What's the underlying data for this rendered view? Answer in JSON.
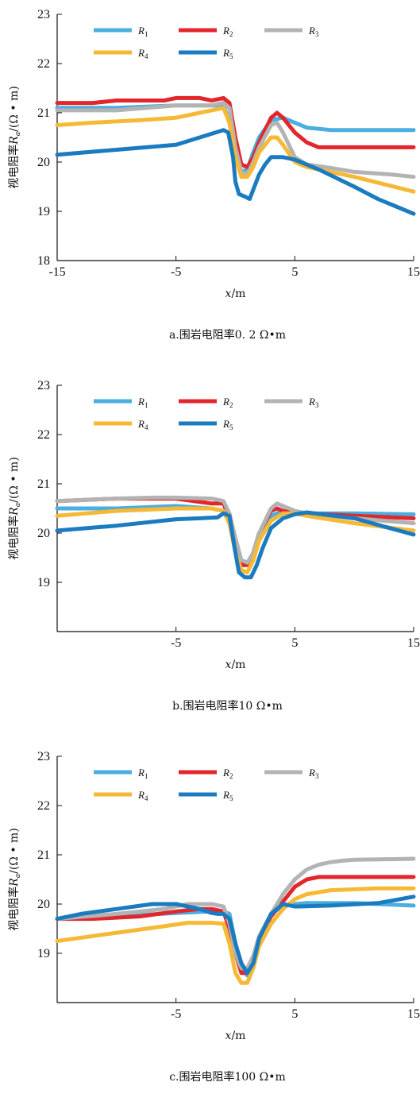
{
  "colors": {
    "R1": "#4aaee0",
    "R2": "#e2262c",
    "R3": "#b3b3b3",
    "R4": "#f6b935",
    "R5": "#1b7bc0"
  },
  "chart_data": [
    {
      "type": "line",
      "caption": "a.围岩电阻率0. 2 Ω•m",
      "ylabel": "视电阻率Ra/(Ω • m)",
      "xlabel": "x/m",
      "xlim": [
        -15,
        15
      ],
      "ylim": [
        18,
        23
      ],
      "xticks": [
        "-15",
        "-5",
        "5",
        "15"
      ],
      "yticks": [
        "18",
        "19",
        "20",
        "21",
        "22",
        "23"
      ],
      "legend": [
        "R1",
        "R2",
        "R3",
        "R4",
        "R5"
      ],
      "series": [
        {
          "name": "R1",
          "x": [
            -15,
            -10,
            -5,
            -2,
            -1,
            -0.5,
            0,
            0.5,
            1,
            1.5,
            2,
            3,
            4,
            5,
            6,
            8,
            10,
            15
          ],
          "y": [
            21.1,
            21.1,
            21.15,
            21.15,
            21.15,
            20.8,
            20.15,
            19.8,
            19.85,
            20.2,
            20.5,
            20.85,
            20.9,
            20.8,
            20.7,
            20.65,
            20.65,
            20.65
          ]
        },
        {
          "name": "R2",
          "x": [
            -15,
            -12,
            -10,
            -8,
            -6,
            -5,
            -3,
            -2,
            -1,
            -0.5,
            0,
            0.5,
            1,
            1.5,
            2,
            3,
            3.5,
            4,
            5,
            6,
            7,
            8,
            10,
            15
          ],
          "y": [
            21.2,
            21.2,
            21.25,
            21.25,
            21.25,
            21.3,
            21.3,
            21.25,
            21.3,
            21.2,
            20.5,
            19.95,
            19.9,
            20.1,
            20.4,
            20.9,
            21.0,
            20.9,
            20.6,
            20.4,
            20.3,
            20.3,
            20.3,
            20.3
          ]
        },
        {
          "name": "R3",
          "x": [
            -15,
            -10,
            -5,
            -2,
            -1,
            -0.5,
            0,
            0.5,
            1,
            1.5,
            2,
            3,
            3.5,
            4,
            5,
            6,
            8,
            10,
            13,
            15
          ],
          "y": [
            21.05,
            21.05,
            21.15,
            21.15,
            21.2,
            21.1,
            20.3,
            19.8,
            19.75,
            20.0,
            20.3,
            20.75,
            20.8,
            20.6,
            20.1,
            19.95,
            19.88,
            19.8,
            19.75,
            19.7
          ]
        },
        {
          "name": "R4",
          "x": [
            -15,
            -12,
            -8,
            -5,
            -3,
            -2,
            -1,
            -0.5,
            0,
            0.5,
            1,
            1.5,
            2,
            3,
            3.5,
            4,
            5,
            6,
            8,
            10,
            15
          ],
          "y": [
            20.75,
            20.8,
            20.85,
            20.9,
            21.0,
            21.05,
            21.1,
            20.8,
            20.1,
            19.7,
            19.7,
            19.9,
            20.2,
            20.5,
            20.5,
            20.35,
            20.0,
            19.9,
            19.8,
            19.7,
            19.4
          ]
        },
        {
          "name": "R5",
          "x": [
            -15,
            -10,
            -5,
            -3,
            -1,
            -0.6,
            -0.2,
            0,
            0.3,
            0.8,
            1.2,
            1.6,
            2,
            2.5,
            3,
            3.5,
            4,
            5,
            7,
            10,
            12,
            15
          ],
          "y": [
            20.15,
            20.25,
            20.35,
            20.5,
            20.65,
            20.6,
            20.1,
            19.6,
            19.35,
            19.3,
            19.25,
            19.5,
            19.75,
            19.95,
            20.1,
            20.1,
            20.1,
            20.05,
            19.85,
            19.5,
            19.25,
            18.95
          ]
        }
      ]
    },
    {
      "type": "line",
      "caption": "b.围岩电阻率10 Ω•m",
      "ylabel": "视电阻率Ra/(Ω • m)",
      "xlabel": "x/m",
      "xlim": [
        -15,
        15
      ],
      "ylim": [
        18,
        23
      ],
      "xticks": [
        "-5",
        "5",
        "15"
      ],
      "yticks": [
        "19",
        "20",
        "21",
        "22",
        "23"
      ],
      "legend": [
        "R1",
        "R2",
        "R3",
        "R4",
        "R5"
      ],
      "series": [
        {
          "name": "R1",
          "x": [
            -15,
            -10,
            -5,
            -2,
            -1,
            -0.5,
            0,
            0.5,
            1,
            1.5,
            2,
            3,
            4,
            5,
            6,
            10,
            15
          ],
          "y": [
            20.5,
            20.5,
            20.55,
            20.5,
            20.45,
            20.2,
            19.7,
            19.35,
            19.35,
            19.6,
            20.0,
            20.35,
            20.45,
            20.42,
            20.4,
            20.4,
            20.38
          ]
        },
        {
          "name": "R2",
          "x": [
            -15,
            -10,
            -5,
            -2,
            -1,
            -0.5,
            0,
            0.5,
            1,
            1.5,
            2,
            3,
            3.5,
            4,
            5,
            6,
            10,
            15
          ],
          "y": [
            20.65,
            20.7,
            20.7,
            20.6,
            20.6,
            20.3,
            19.75,
            19.35,
            19.35,
            19.6,
            20.0,
            20.45,
            20.5,
            20.45,
            20.4,
            20.4,
            20.35,
            20.3
          ]
        },
        {
          "name": "R3",
          "x": [
            -15,
            -10,
            -7,
            -5,
            -2,
            -1,
            -0.5,
            0,
            0.5,
            1,
            1.5,
            2,
            3,
            3.5,
            4,
            5,
            6,
            10,
            15
          ],
          "y": [
            20.65,
            20.7,
            20.72,
            20.72,
            20.7,
            20.65,
            20.4,
            19.9,
            19.45,
            19.4,
            19.6,
            20.0,
            20.5,
            20.6,
            20.55,
            20.45,
            20.4,
            20.3,
            20.2
          ]
        },
        {
          "name": "R4",
          "x": [
            -15,
            -10,
            -5,
            -2,
            -1,
            -0.5,
            0,
            0.5,
            1,
            1.5,
            2,
            3,
            4,
            5,
            6,
            10,
            15
          ],
          "y": [
            20.35,
            20.45,
            20.5,
            20.5,
            20.45,
            20.2,
            19.6,
            19.25,
            19.2,
            19.45,
            19.85,
            20.25,
            20.4,
            20.4,
            20.35,
            20.2,
            20.05
          ]
        },
        {
          "name": "R5",
          "x": [
            -15,
            -10,
            -5,
            -3,
            -1.5,
            -1,
            -0.5,
            0,
            0.3,
            0.8,
            1.3,
            1.8,
            2.3,
            3,
            4,
            5,
            6,
            10,
            13,
            15
          ],
          "y": [
            20.05,
            20.15,
            20.28,
            20.3,
            20.32,
            20.4,
            20.35,
            19.6,
            19.2,
            19.1,
            19.1,
            19.35,
            19.7,
            20.1,
            20.3,
            20.38,
            20.42,
            20.3,
            20.1,
            19.97
          ]
        }
      ]
    },
    {
      "type": "line",
      "caption": "c.围岩电阻率100 Ω•m",
      "ylabel": "视电阻率Ra/(Ω • m)",
      "xlabel": "x/m",
      "xlim": [
        -15,
        15
      ],
      "ylim": [
        18,
        23
      ],
      "xticks": [
        "-5",
        "5",
        "15"
      ],
      "yticks": [
        "19",
        "20",
        "21",
        "22",
        "23"
      ],
      "legend": [
        "R1",
        "R2",
        "R3",
        "R4",
        "R5"
      ],
      "series": [
        {
          "name": "R1",
          "x": [
            -15,
            -10,
            -5,
            -2,
            -1,
            -0.5,
            0,
            0.5,
            1,
            1.5,
            2,
            3,
            4,
            5,
            6,
            10,
            15
          ],
          "y": [
            19.7,
            19.75,
            19.82,
            19.85,
            19.85,
            19.8,
            19.2,
            18.7,
            18.55,
            18.7,
            19.2,
            19.8,
            19.97,
            20.0,
            20.02,
            20.02,
            19.97
          ]
        },
        {
          "name": "R2",
          "x": [
            -15,
            -12,
            -8,
            -5,
            -3,
            -2,
            -1,
            -0.5,
            0,
            0.5,
            1,
            1.5,
            2,
            3,
            4,
            5,
            6,
            7,
            10,
            15
          ],
          "y": [
            19.7,
            19.7,
            19.75,
            19.85,
            19.9,
            19.9,
            19.85,
            19.5,
            19.0,
            18.6,
            18.6,
            18.85,
            19.3,
            19.75,
            20.05,
            20.35,
            20.5,
            20.55,
            20.55,
            20.55
          ]
        },
        {
          "name": "R3",
          "x": [
            -15,
            -10,
            -6,
            -4,
            -2,
            -1,
            -0.5,
            0,
            0.5,
            1,
            1.5,
            2,
            3,
            4,
            5,
            6,
            7,
            8,
            9,
            10,
            15
          ],
          "y": [
            19.7,
            19.8,
            19.9,
            20.0,
            20.0,
            19.95,
            19.6,
            19.0,
            18.7,
            18.7,
            18.95,
            19.35,
            19.8,
            20.2,
            20.5,
            20.7,
            20.8,
            20.85,
            20.88,
            20.9,
            20.92
          ]
        },
        {
          "name": "R4",
          "x": [
            -15,
            -12,
            -9,
            -6,
            -4,
            -2,
            -1,
            -0.5,
            0,
            0.5,
            1,
            1.5,
            2,
            3,
            4,
            5,
            6,
            8,
            10,
            12,
            15
          ],
          "y": [
            19.25,
            19.35,
            19.45,
            19.55,
            19.62,
            19.62,
            19.6,
            19.2,
            18.6,
            18.4,
            18.4,
            18.7,
            19.15,
            19.6,
            19.9,
            20.1,
            20.2,
            20.28,
            20.3,
            20.32,
            20.32
          ]
        },
        {
          "name": "R5",
          "x": [
            -15,
            -13,
            -10,
            -7,
            -5,
            -3,
            -2,
            -1.5,
            -1,
            -0.5,
            0,
            0.5,
            1,
            1.5,
            2,
            3,
            4,
            5,
            8,
            12,
            15
          ],
          "y": [
            19.7,
            19.8,
            19.9,
            20.0,
            20.0,
            19.9,
            19.82,
            19.8,
            19.8,
            19.7,
            19.2,
            18.8,
            18.6,
            18.8,
            19.3,
            19.8,
            20.0,
            19.95,
            19.97,
            20.02,
            20.15
          ]
        }
      ]
    }
  ]
}
